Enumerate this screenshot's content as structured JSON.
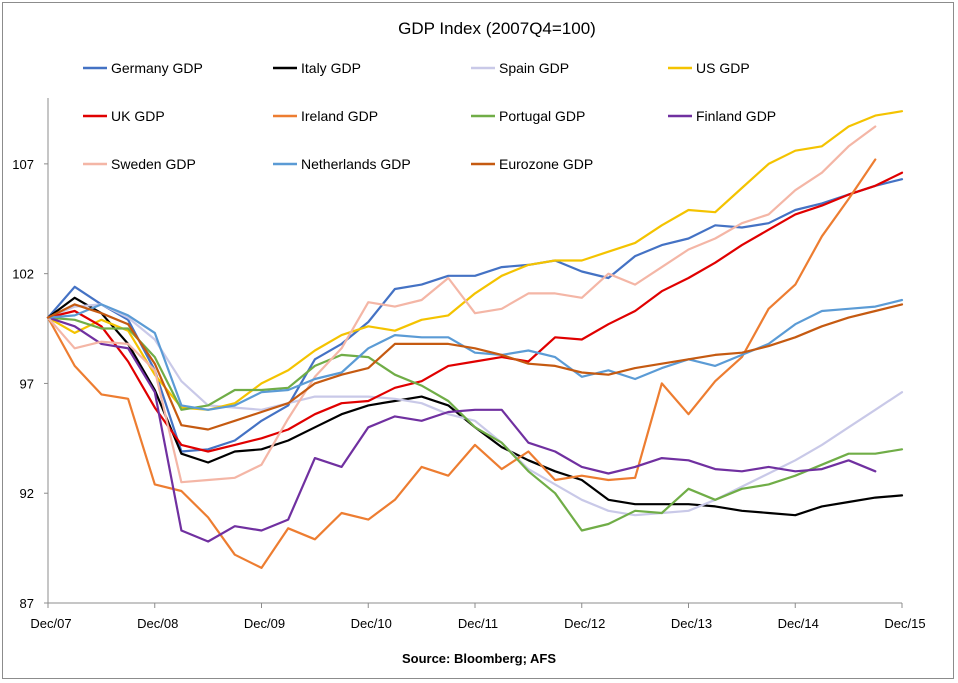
{
  "chart_data": {
    "type": "line",
    "title": "GDP Index (2007Q4=100)",
    "source": "Source: Bloomberg; AFS",
    "xlabel": "",
    "ylabel": "",
    "ylim": [
      87,
      110
    ],
    "y_ticks": [
      87,
      92,
      97,
      102,
      107
    ],
    "y_tick_labels": [
      "87",
      "92",
      "97",
      "102",
      "107"
    ],
    "x_tick_labels": [
      "Dec/07",
      "Dec/08",
      "Dec/09",
      "Dec/10",
      "Dec/11",
      "Dec/12",
      "Dec/13",
      "Dec/14",
      "Dec/15"
    ],
    "x": [
      "Dec/07",
      "Mar/08",
      "Jun/08",
      "Sep/08",
      "Dec/08",
      "Mar/09",
      "Jun/09",
      "Sep/09",
      "Dec/09",
      "Mar/10",
      "Jun/10",
      "Sep/10",
      "Dec/10",
      "Mar/11",
      "Jun/11",
      "Sep/11",
      "Dec/11",
      "Mar/12",
      "Jun/12",
      "Sep/12",
      "Dec/12",
      "Mar/13",
      "Jun/13",
      "Sep/13",
      "Dec/13",
      "Mar/14",
      "Jun/14",
      "Sep/14",
      "Dec/14",
      "Mar/15",
      "Jun/15",
      "Sep/15",
      "Dec/15"
    ],
    "grid": false,
    "legend_position": "top",
    "series": [
      {
        "name": "Germany GDP",
        "color": "#4472c4",
        "values": [
          100,
          101.4,
          100.6,
          99.9,
          97.6,
          93.9,
          94.0,
          94.4,
          95.3,
          96.0,
          98.1,
          98.8,
          99.8,
          101.3,
          101.5,
          101.9,
          101.9,
          102.3,
          102.4,
          102.6,
          102.1,
          101.8,
          102.8,
          103.3,
          103.6,
          104.2,
          104.1,
          104.3,
          104.9,
          105.2,
          105.6,
          106.0,
          106.3
        ]
      },
      {
        "name": "Italy GDP",
        "color": "#000000",
        "values": [
          100,
          100.9,
          100.2,
          98.8,
          96.7,
          93.8,
          93.4,
          93.9,
          94.0,
          94.4,
          95.0,
          95.6,
          96.0,
          96.2,
          96.4,
          96.0,
          95.0,
          94.1,
          93.5,
          93.0,
          92.6,
          91.7,
          91.5,
          91.5,
          91.5,
          91.4,
          91.2,
          91.1,
          91.0,
          91.4,
          91.6,
          91.8,
          91.9
        ]
      },
      {
        "name": "Spain GDP",
        "color": "#c9c9e8",
        "values": [
          100,
          100.5,
          100.6,
          100.0,
          99.0,
          97.1,
          96.0,
          95.9,
          95.8,
          96.1,
          96.4,
          96.4,
          96.4,
          96.3,
          96.1,
          95.6,
          95.3,
          94.3,
          93.1,
          92.4,
          91.7,
          91.2,
          91.0,
          91.1,
          91.2,
          91.7,
          92.3,
          92.9,
          93.5,
          94.2,
          95.0,
          95.8,
          96.6
        ]
      },
      {
        "name": "US GDP",
        "color": "#f4c300",
        "values": [
          100,
          99.3,
          99.9,
          99.4,
          97.4,
          95.9,
          95.8,
          96.1,
          97.0,
          97.6,
          98.5,
          99.2,
          99.6,
          99.4,
          99.9,
          100.1,
          101.1,
          101.9,
          102.4,
          102.6,
          102.6,
          103.0,
          103.4,
          104.2,
          104.9,
          104.8,
          105.9,
          107.0,
          107.6,
          107.8,
          108.7,
          109.2,
          109.4
        ]
      },
      {
        "name": "UK GDP",
        "color": "#e00000",
        "values": [
          100,
          100.3,
          99.6,
          98.0,
          95.9,
          94.2,
          93.9,
          94.2,
          94.5,
          94.9,
          95.6,
          96.1,
          96.2,
          96.8,
          97.1,
          97.8,
          98.0,
          98.2,
          98.0,
          99.1,
          99.0,
          99.7,
          100.3,
          101.2,
          101.8,
          102.5,
          103.3,
          104.0,
          104.7,
          105.1,
          105.6,
          106.0,
          106.6
        ]
      },
      {
        "name": "Ireland GDP",
        "color": "#ed7d31",
        "values": [
          100,
          97.8,
          96.5,
          96.3,
          92.4,
          92.1,
          90.9,
          89.2,
          88.6,
          90.4,
          89.9,
          91.1,
          90.8,
          91.7,
          93.2,
          92.8,
          94.2,
          93.1,
          93.9,
          92.6,
          92.8,
          92.6,
          92.7,
          97.0,
          95.6,
          97.1,
          98.2,
          100.4,
          101.5,
          103.7,
          105.4,
          107.2,
          null
        ]
      },
      {
        "name": "Portugal GDP",
        "color": "#70ad47",
        "values": [
          100,
          99.9,
          99.5,
          99.5,
          98.2,
          95.8,
          96.0,
          96.7,
          96.7,
          96.8,
          97.8,
          98.3,
          98.2,
          97.4,
          96.9,
          96.2,
          95.0,
          94.3,
          93.0,
          92.0,
          90.3,
          90.6,
          91.2,
          91.1,
          92.2,
          91.7,
          92.2,
          92.4,
          92.8,
          93.3,
          93.8,
          93.8,
          94.0
        ]
      },
      {
        "name": "Finland GDP",
        "color": "#7030a0",
        "values": [
          100,
          99.6,
          98.8,
          98.6,
          96.6,
          90.3,
          89.8,
          90.5,
          90.3,
          90.8,
          93.6,
          93.2,
          95.0,
          95.5,
          95.3,
          95.7,
          95.8,
          95.8,
          94.3,
          93.9,
          93.2,
          92.9,
          93.2,
          93.6,
          93.5,
          93.1,
          93.0,
          93.2,
          93.0,
          93.1,
          93.5,
          93.0,
          null
        ]
      },
      {
        "name": "Sweden GDP",
        "color": "#f4b6a6",
        "values": [
          100,
          98.6,
          98.9,
          98.8,
          97.6,
          92.5,
          92.6,
          92.7,
          93.3,
          95.4,
          97.3,
          98.6,
          100.7,
          100.5,
          100.8,
          101.8,
          100.2,
          100.4,
          101.1,
          101.1,
          100.9,
          102.0,
          101.5,
          102.3,
          103.1,
          103.6,
          104.3,
          104.7,
          105.8,
          106.6,
          107.8,
          108.7,
          null
        ]
      },
      {
        "name": "Netherlands GDP",
        "color": "#5b9bd5",
        "values": [
          100,
          100.1,
          100.6,
          100.1,
          99.3,
          96.0,
          95.8,
          96.0,
          96.6,
          96.7,
          97.2,
          97.5,
          98.6,
          99.2,
          99.1,
          99.1,
          98.4,
          98.3,
          98.5,
          98.2,
          97.3,
          97.6,
          97.2,
          97.7,
          98.1,
          97.8,
          98.3,
          98.8,
          99.7,
          100.3,
          100.4,
          100.5,
          100.8
        ]
      },
      {
        "name": "Eurozone GDP",
        "color": "#c55a11",
        "values": [
          100,
          100.6,
          100.2,
          99.7,
          97.9,
          95.1,
          94.9,
          95.3,
          95.7,
          96.1,
          97.0,
          97.4,
          97.7,
          98.8,
          98.8,
          98.8,
          98.6,
          98.3,
          97.9,
          97.8,
          97.5,
          97.4,
          97.7,
          97.9,
          98.1,
          98.3,
          98.4,
          98.7,
          99.1,
          99.6,
          100.0,
          100.3,
          100.6
        ]
      }
    ]
  }
}
